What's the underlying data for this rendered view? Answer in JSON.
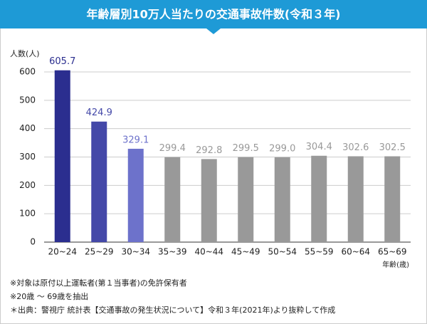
{
  "chart_data": {
    "type": "bar",
    "title": "年齢層別10万人当たりの交通事故件数(令和３年)",
    "y_axis_label": "人数(人)",
    "x_axis_label": "年齢(歳)",
    "categories": [
      "20~24",
      "25~29",
      "30~34",
      "35~39",
      "40~44",
      "45~49",
      "50~54",
      "55~59",
      "60~64",
      "65~69"
    ],
    "values": [
      605.7,
      424.9,
      329.1,
      299.4,
      292.8,
      299.5,
      299.0,
      304.4,
      302.6,
      302.5
    ],
    "value_labels": [
      "605.7",
      "424.9",
      "329.1",
      "299.4",
      "292.8",
      "299.5",
      "299.0",
      "304.4",
      "302.6",
      "302.5"
    ],
    "colors": [
      "#2b2e8f",
      "#4448a8",
      "#6d72cb",
      "#999999",
      "#999999",
      "#999999",
      "#999999",
      "#999999",
      "#999999",
      "#999999"
    ],
    "label_colors": [
      "#2b2e8f",
      "#4448a8",
      "#6d72cb",
      "#999999",
      "#999999",
      "#999999",
      "#999999",
      "#999999",
      "#999999",
      "#999999"
    ],
    "ylim": [
      0,
      600
    ],
    "yticks": [
      0,
      100,
      200,
      300,
      400,
      500,
      600
    ],
    "grid": true,
    "notes": [
      "※対象は原付以上運転者(第１当事者)の免許保有者",
      "※20歳 ～ 69歳を抽出",
      "＊出典：警視庁 統計表【交通事故の発生状況について】令和３年(2021年)より抜粋して作成"
    ]
  }
}
